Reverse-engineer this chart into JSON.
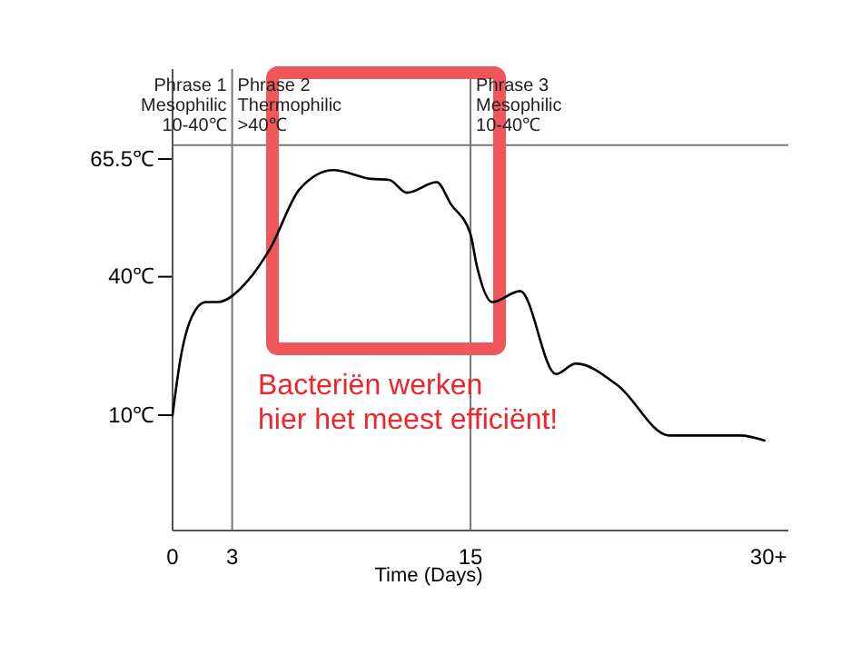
{
  "chart_data": {
    "type": "line",
    "xlabel": "Time (Days)",
    "x": [
      0,
      0.39,
      0.98,
      1.67,
      2.25,
      3.8,
      4.9,
      6.4,
      8.1,
      10.0,
      10.9,
      11.8,
      13.3,
      14.0,
      15,
      15.3,
      16.1,
      17.5,
      19.3,
      20.3,
      22.4,
      25,
      28.6,
      29.8
    ],
    "series": [
      {
        "color": "#000000",
        "values": [
          10,
          22,
          31.4,
          34.5,
          34.5,
          39.2,
          46,
          59,
          63.1,
          61.2,
          61,
          58.2,
          60.5,
          55.8,
          49.2,
          42.7,
          34.5,
          36.9,
          18.9,
          21.2,
          16.5,
          5.6,
          5.6,
          4.5
        ]
      }
    ],
    "xlim": [
      0,
      31
    ],
    "xticks": [
      0,
      3,
      15,
      {
        "value": 30,
        "label": "30+"
      }
    ],
    "ylim": [
      -15,
      85
    ],
    "yticks": [
      {
        "value": 10,
        "label": "10℃"
      },
      {
        "value": 40,
        "label": "40℃"
      },
      {
        "value": 65.5,
        "label": "65.5℃"
      }
    ],
    "ref_lines": [
      {
        "axis": "x",
        "value": 3
      },
      {
        "axis": "x",
        "value": 15
      },
      {
        "axis": "y",
        "value": 68.5
      }
    ],
    "annotations": [
      "Phrase 1\nMesophilic\n10-40℃",
      "Phrase 2\nThermophilic\n>40℃",
      "Phrase 3\nMesophilic\n10-40℃",
      "Bacteriën werken\nhier het meest efficiënt!"
    ],
    "grid": false,
    "marker": "none",
    "line_style": "solid"
  }
}
